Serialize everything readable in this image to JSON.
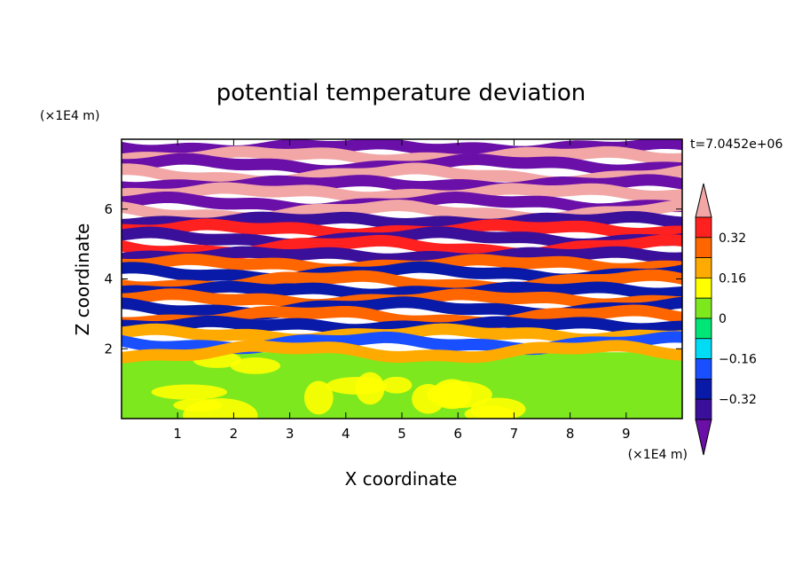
{
  "chart_data": {
    "type": "heatmap",
    "title": "potential temperature deviation",
    "xlabel": "X coordinate",
    "ylabel": "Z coordinate",
    "x_unit": "(×1E4 m)",
    "y_unit": "(×1E4 m)",
    "time_label": "t=7.0452e+06",
    "xlim": [
      0,
      10
    ],
    "ylim": [
      0,
      8
    ],
    "x_ticks": [
      "1",
      "2",
      "3",
      "4",
      "5",
      "6",
      "7",
      "8",
      "9"
    ],
    "y_ticks": [
      "2",
      "4",
      "6"
    ],
    "colorbar": {
      "levels": [
        -0.48,
        -0.4,
        -0.32,
        -0.24,
        -0.16,
        -0.08,
        0,
        0.08,
        0.16,
        0.24,
        0.32,
        0.4
      ],
      "tick_labels": [
        "0.32",
        "0.16",
        "0",
        "−0.16",
        "−0.32"
      ],
      "tick_values": [
        0.32,
        0.16,
        0,
        -0.16,
        -0.32
      ],
      "colors": [
        "#6a0fa8",
        "#3a0f9a",
        "#0a1aa8",
        "#1a4fff",
        "#00dcf5",
        "#00e676",
        "#7ee81e",
        "#ffff00",
        "#ffaa00",
        "#ff6600",
        "#ff2020",
        "#f2a6a6"
      ],
      "extend": "both"
    },
    "bands": [
      {
        "z": 7.8,
        "v": -0.45
      },
      {
        "z": 7.55,
        "v": 0.42
      },
      {
        "z": 7.3,
        "v": -0.45
      },
      {
        "z": 7.0,
        "v": 0.42
      },
      {
        "z": 6.75,
        "v": -0.45
      },
      {
        "z": 6.5,
        "v": 0.42
      },
      {
        "z": 6.2,
        "v": -0.42
      },
      {
        "z": 5.95,
        "v": 0.4
      },
      {
        "z": 5.7,
        "v": -0.4
      },
      {
        "z": 5.45,
        "v": 0.36
      },
      {
        "z": 5.2,
        "v": -0.36
      },
      {
        "z": 4.95,
        "v": 0.34
      },
      {
        "z": 4.7,
        "v": -0.34
      },
      {
        "z": 4.45,
        "v": 0.3
      },
      {
        "z": 4.2,
        "v": -0.3
      },
      {
        "z": 3.95,
        "v": 0.28
      },
      {
        "z": 3.7,
        "v": -0.32
      },
      {
        "z": 3.45,
        "v": 0.3
      },
      {
        "z": 3.2,
        "v": -0.32
      },
      {
        "z": 2.95,
        "v": 0.26
      },
      {
        "z": 2.7,
        "v": -0.26
      },
      {
        "z": 2.45,
        "v": 0.22
      },
      {
        "z": 2.2,
        "v": -0.24
      },
      {
        "z": 1.95,
        "v": 0.18
      }
    ],
    "lower_region": {
      "z_top": 1.9,
      "base_value": 0.02,
      "patch_value": 0.09
    }
  }
}
